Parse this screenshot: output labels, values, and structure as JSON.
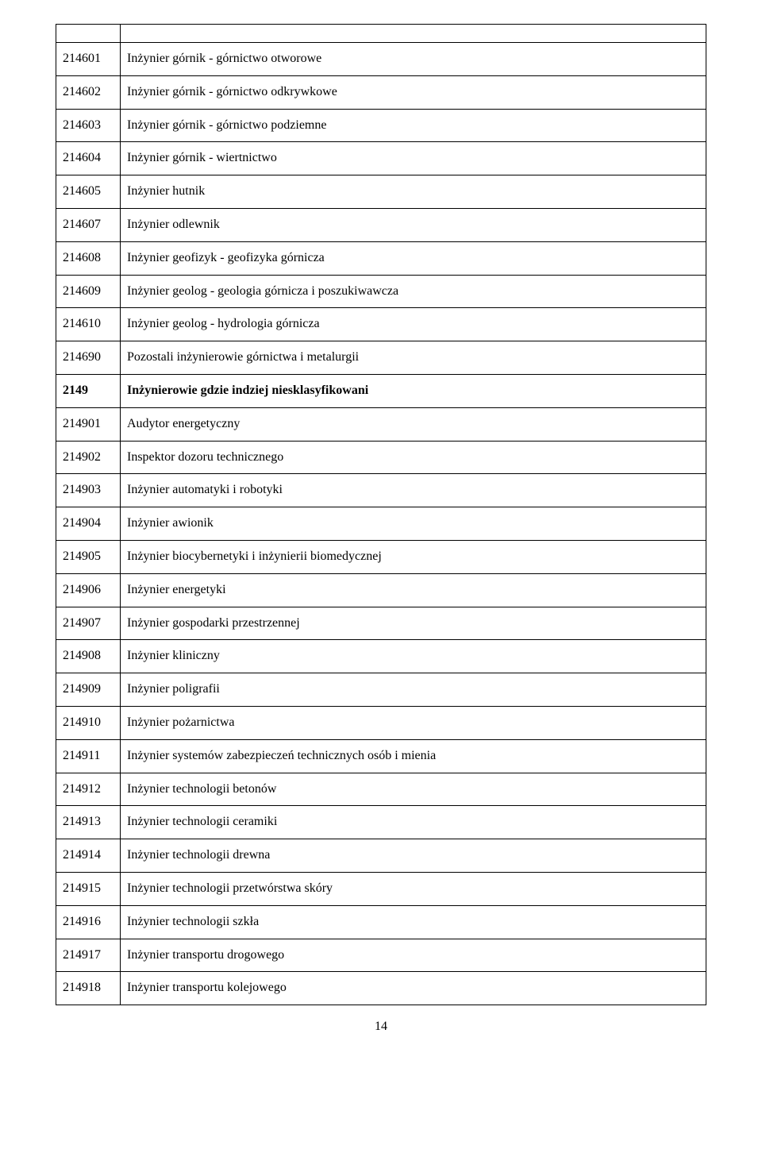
{
  "rows": [
    {
      "code": "",
      "desc": "",
      "bold": false,
      "empty": true
    },
    {
      "code": "214601",
      "desc": "Inżynier górnik - górnictwo otworowe",
      "bold": false
    },
    {
      "code": "214602",
      "desc": "Inżynier górnik - górnictwo odkrywkowe",
      "bold": false
    },
    {
      "code": "214603",
      "desc": "Inżynier górnik - górnictwo podziemne",
      "bold": false
    },
    {
      "code": "214604",
      "desc": "Inżynier górnik - wiertnictwo",
      "bold": false
    },
    {
      "code": "214605",
      "desc": "Inżynier hutnik",
      "bold": false
    },
    {
      "code": "214607",
      "desc": "Inżynier odlewnik",
      "bold": false
    },
    {
      "code": "214608",
      "desc": "Inżynier geofizyk - geofizyka górnicza",
      "bold": false
    },
    {
      "code": "214609",
      "desc": "Inżynier geolog - geologia górnicza i poszukiwawcza",
      "bold": false
    },
    {
      "code": "214610",
      "desc": "Inżynier geolog - hydrologia górnicza",
      "bold": false
    },
    {
      "code": "214690",
      "desc": "Pozostali inżynierowie górnictwa i metalurgii",
      "bold": false
    },
    {
      "code": "2149",
      "desc": "Inżynierowie gdzie indziej niesklasyfikowani",
      "bold": true
    },
    {
      "code": "214901",
      "desc": "Audytor energetyczny",
      "bold": false
    },
    {
      "code": "214902",
      "desc": "Inspektor dozoru technicznego",
      "bold": false
    },
    {
      "code": "214903",
      "desc": "Inżynier automatyki i robotyki",
      "bold": false
    },
    {
      "code": "214904",
      "desc": "Inżynier awionik",
      "bold": false
    },
    {
      "code": "214905",
      "desc": "Inżynier biocybernetyki i inżynierii biomedycznej",
      "bold": false
    },
    {
      "code": "214906",
      "desc": "Inżynier energetyki",
      "bold": false
    },
    {
      "code": "214907",
      "desc": "Inżynier gospodarki przestrzennej",
      "bold": false
    },
    {
      "code": "214908",
      "desc": "Inżynier kliniczny",
      "bold": false
    },
    {
      "code": "214909",
      "desc": "Inżynier poligrafii",
      "bold": false
    },
    {
      "code": "214910",
      "desc": "Inżynier pożarnictwa",
      "bold": false
    },
    {
      "code": "214911",
      "desc": "Inżynier systemów zabezpieczeń technicznych osób i mienia",
      "bold": false
    },
    {
      "code": "214912",
      "desc": "Inżynier technologii betonów",
      "bold": false
    },
    {
      "code": "214913",
      "desc": "Inżynier technologii ceramiki",
      "bold": false
    },
    {
      "code": "214914",
      "desc": "Inżynier technologii drewna",
      "bold": false
    },
    {
      "code": "214915",
      "desc": "Inżynier technologii przetwórstwa skóry",
      "bold": false
    },
    {
      "code": "214916",
      "desc": "Inżynier technologii szkła",
      "bold": false
    },
    {
      "code": "214917",
      "desc": "Inżynier transportu drogowego",
      "bold": false
    },
    {
      "code": "214918",
      "desc": "Inżynier transportu kolejowego",
      "bold": false
    }
  ],
  "page_number": "14"
}
